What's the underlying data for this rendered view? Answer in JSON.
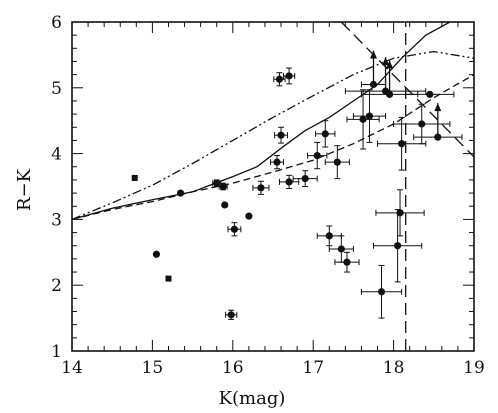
{
  "chart_data": {
    "type": "scatter",
    "title": "",
    "xlabel": "K(mag)",
    "ylabel": "R−K",
    "xlim": [
      14,
      19
    ],
    "ylim": [
      1,
      6
    ],
    "xticks": [
      14,
      15,
      16,
      17,
      18,
      19
    ],
    "yticks": [
      1,
      2,
      3,
      4,
      5,
      6
    ],
    "x_tick_labels": [
      "14",
      "15",
      "16",
      "17",
      "18",
      "19"
    ],
    "y_tick_labels": [
      "1",
      "2",
      "3",
      "4",
      "5",
      "6"
    ],
    "grid": false,
    "legend": "none",
    "points": [
      {
        "x": 14.78,
        "y": 3.63,
        "marker": "square"
      },
      {
        "x": 15.05,
        "y": 2.47,
        "marker": "circle"
      },
      {
        "x": 15.2,
        "y": 2.1,
        "marker": "square"
      },
      {
        "x": 15.35,
        "y": 3.4,
        "marker": "circle"
      },
      {
        "x": 15.8,
        "y": 3.55,
        "marker": "circle",
        "xerr": 0.05,
        "yerr": 0.05
      },
      {
        "x": 15.88,
        "y": 3.5,
        "marker": "circle",
        "xerr": 0.05,
        "yerr": 0.05
      },
      {
        "x": 15.9,
        "y": 3.22,
        "marker": "circle"
      },
      {
        "x": 15.98,
        "y": 1.55,
        "marker": "circle",
        "xerr": 0.07,
        "yerr": 0.07
      },
      {
        "x": 16.02,
        "y": 2.85,
        "marker": "circle",
        "xerr": 0.08,
        "yerr": 0.1
      },
      {
        "x": 16.2,
        "y": 3.05,
        "marker": "circle"
      },
      {
        "x": 16.35,
        "y": 3.48,
        "marker": "circle",
        "xerr": 0.1,
        "yerr": 0.1
      },
      {
        "x": 16.55,
        "y": 3.87,
        "marker": "circle",
        "xerr": 0.08,
        "yerr": 0.1
      },
      {
        "x": 16.6,
        "y": 4.28,
        "marker": "circle",
        "xerr": 0.08,
        "yerr": 0.12
      },
      {
        "x": 16.58,
        "y": 5.13,
        "marker": "circle",
        "xerr": 0.07,
        "yerr": 0.1
      },
      {
        "x": 16.7,
        "y": 5.18,
        "marker": "circle",
        "xerr": 0.07,
        "yerr": 0.12
      },
      {
        "x": 16.7,
        "y": 3.57,
        "marker": "circle",
        "xerr": 0.12,
        "yerr": 0.1
      },
      {
        "x": 16.9,
        "y": 3.62,
        "marker": "circle",
        "xerr": 0.15,
        "yerr": 0.12
      },
      {
        "x": 17.05,
        "y": 3.97,
        "marker": "circle",
        "xerr": 0.12,
        "yerr": 0.2
      },
      {
        "x": 17.15,
        "y": 4.3,
        "marker": "circle",
        "xerr": 0.12,
        "yerr": 0.2
      },
      {
        "x": 17.2,
        "y": 2.75,
        "marker": "circle",
        "xerr": 0.15,
        "yerr": 0.15
      },
      {
        "x": 17.3,
        "y": 3.87,
        "marker": "circle",
        "xerr": 0.15,
        "yerr": 0.25
      },
      {
        "x": 17.35,
        "y": 2.55,
        "marker": "circle",
        "xerr": 0.15,
        "yerr": 0.2
      },
      {
        "x": 17.42,
        "y": 2.35,
        "marker": "circle",
        "xerr": 0.15,
        "yerr": 0.15
      },
      {
        "x": 17.62,
        "y": 4.52,
        "marker": "circle",
        "xerr": 0.2,
        "yerr": 0.45
      },
      {
        "x": 17.7,
        "y": 4.57,
        "marker": "circle",
        "xerr": 0.2,
        "yerr": 0.4
      },
      {
        "x": 17.75,
        "y": 5.05,
        "marker": "circle",
        "xerr": 0.15,
        "lower_limit": true
      },
      {
        "x": 17.85,
        "y": 1.9,
        "marker": "circle",
        "xerr": 0.25,
        "yerr": 0.4
      },
      {
        "x": 17.9,
        "y": 4.95,
        "marker": "circle",
        "xerr": 0.5,
        "lower_limit": true
      },
      {
        "x": 17.95,
        "y": 4.9,
        "marker": "circle",
        "xerr": 0.35,
        "lower_limit": true
      },
      {
        "x": 18.05,
        "y": 2.6,
        "marker": "circle",
        "xerr": 0.3,
        "yerr": 0.55
      },
      {
        "x": 18.08,
        "y": 3.1,
        "marker": "circle",
        "xerr": 0.3,
        "yerr": 0.35
      },
      {
        "x": 18.1,
        "y": 4.15,
        "marker": "circle",
        "xerr": 0.3,
        "yerr": 0.4
      },
      {
        "x": 18.35,
        "y": 4.45,
        "marker": "circle",
        "xerr": 0.35,
        "yerr": 0.3
      },
      {
        "x": 18.45,
        "y": 4.9,
        "marker": "circle",
        "xerr": 0.3
      },
      {
        "x": 18.55,
        "y": 4.25,
        "marker": "circle",
        "xerr": 0.3,
        "lower_limit": true
      }
    ],
    "curves": [
      {
        "style": "solid",
        "x": [
          14.0,
          14.5,
          15.0,
          15.5,
          15.8,
          16.0,
          16.3,
          16.6,
          16.9,
          17.2,
          17.5,
          17.8,
          18.1,
          18.4,
          18.7,
          19.0
        ],
        "y": [
          3.0,
          3.17,
          3.3,
          3.42,
          3.56,
          3.65,
          3.8,
          4.08,
          4.35,
          4.55,
          4.8,
          5.05,
          5.45,
          5.8,
          6.0,
          6.2
        ]
      },
      {
        "style": "dashed",
        "x": [
          14.0,
          14.5,
          15.0,
          15.5,
          16.0,
          16.5,
          17.0,
          17.5,
          18.0,
          18.5,
          19.0
        ],
        "y": [
          3.0,
          3.15,
          3.27,
          3.42,
          3.55,
          3.72,
          3.9,
          4.15,
          4.45,
          4.85,
          5.2
        ]
      },
      {
        "style": "dash-dot",
        "x": [
          14.0,
          14.5,
          15.0,
          15.5,
          16.0,
          16.5,
          17.0,
          17.5,
          18.0,
          18.5,
          19.0
        ],
        "y": [
          3.0,
          3.25,
          3.52,
          3.85,
          4.2,
          4.55,
          4.88,
          5.2,
          5.45,
          5.55,
          5.45
        ]
      },
      {
        "style": "long-dash",
        "x": [
          17.35,
          19.0
        ],
        "y": [
          6.0,
          3.95
        ]
      },
      {
        "style": "long-dash",
        "x": [
          18.15,
          18.15
        ],
        "y": [
          1.0,
          6.0
        ]
      }
    ]
  }
}
